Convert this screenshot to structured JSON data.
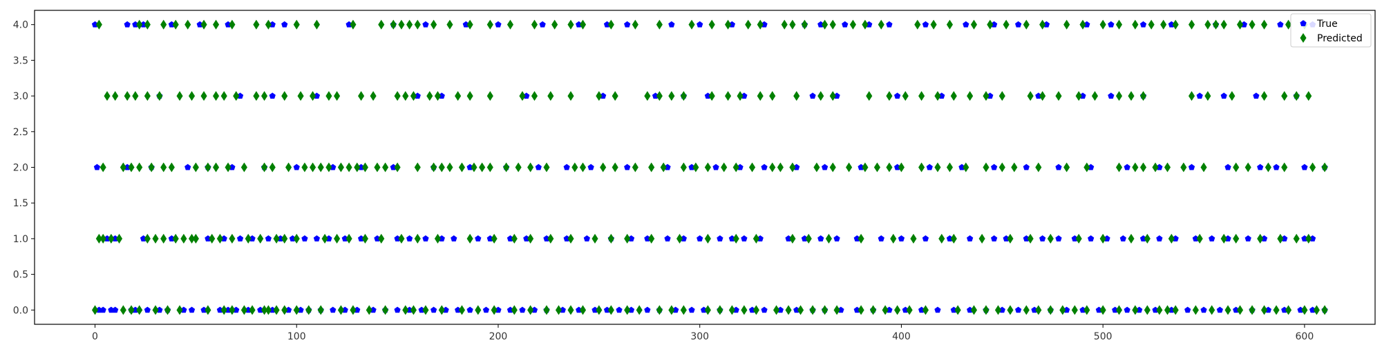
{
  "chart_data": {
    "type": "scatter",
    "xlim": [
      -30,
      635
    ],
    "ylim": [
      -0.2,
      4.2
    ],
    "x_ticks": [
      0,
      100,
      200,
      300,
      400,
      500,
      600
    ],
    "y_ticks": [
      0.0,
      0.5,
      1.0,
      1.5,
      2.0,
      2.5,
      3.0,
      3.5,
      4.0
    ],
    "grid": false,
    "legend_position": "top-right",
    "colors": {
      "true": "#0000ff",
      "predicted": "#008000"
    },
    "series": [
      {
        "name": "True",
        "marker": "pentagon",
        "points": {
          "0": [
            2,
            4,
            8,
            10,
            18,
            20,
            26,
            32,
            36,
            44,
            48,
            54,
            62,
            66,
            70,
            76,
            82,
            88,
            96,
            102,
            106,
            112,
            118,
            124,
            130,
            138,
            144,
            150,
            156,
            162,
            168,
            174,
            180,
            186,
            194,
            200,
            206,
            212,
            218,
            224,
            232,
            240,
            248,
            254,
            260,
            266,
            274,
            280,
            288,
            296,
            302,
            310,
            318,
            326,
            332,
            340,
            348,
            356,
            362,
            370,
            378,
            386,
            394,
            402,
            410,
            418,
            426,
            434,
            442,
            450,
            458,
            466,
            474,
            482,
            490,
            498,
            506,
            512,
            518,
            526,
            534,
            542,
            550,
            558,
            566,
            574,
            582,
            590,
            598,
            604,
            610
          ],
          "1": [
            6,
            10,
            24,
            38,
            56,
            64,
            72,
            78,
            86,
            92,
            98,
            104,
            110,
            116,
            124,
            132,
            140,
            150,
            156,
            164,
            172,
            178,
            190,
            196,
            206,
            214,
            224,
            234,
            244,
            256,
            266,
            274,
            284,
            292,
            300,
            310,
            316,
            322,
            330,
            344,
            352,
            360,
            368,
            378,
            390,
            400,
            412,
            424,
            434,
            446,
            452,
            462,
            470,
            478,
            486,
            494,
            502,
            510,
            520,
            528,
            536,
            546,
            554,
            562,
            572,
            580,
            590,
            600,
            604
          ],
          "2": [
            1,
            16,
            28,
            46,
            56,
            68,
            84,
            100,
            118,
            132,
            148,
            168,
            186,
            204,
            220,
            234,
            246,
            264,
            284,
            296,
            308,
            320,
            332,
            348,
            362,
            380,
            398,
            414,
            430,
            446,
            462,
            478,
            494,
            512,
            528,
            544,
            562,
            578,
            586,
            600,
            610
          ],
          "3": [
            32,
            72,
            88,
            110,
            160,
            172,
            214,
            252,
            278,
            292,
            304,
            322,
            356,
            368,
            398,
            420,
            444,
            468,
            490,
            504,
            520,
            548,
            560,
            576,
            596
          ],
          "4": [
            0,
            16,
            20,
            24,
            38,
            52,
            66,
            88,
            94,
            126,
            148,
            164,
            184,
            200,
            222,
            240,
            254,
            264,
            286,
            300,
            316,
            332,
            352,
            360,
            372,
            384,
            394,
            412,
            432,
            446,
            458,
            472,
            492,
            504,
            520,
            534,
            556,
            570,
            588,
            604
          ]
        }
      },
      {
        "name": "Predicted",
        "marker": "diamond",
        "points": {
          "0": [
            0,
            14,
            18,
            22,
            30,
            36,
            42,
            56,
            64,
            68,
            74,
            78,
            84,
            86,
            90,
            94,
            100,
            106,
            112,
            122,
            128,
            136,
            144,
            154,
            158,
            164,
            172,
            182,
            190,
            198,
            208,
            216,
            224,
            230,
            236,
            242,
            250,
            256,
            264,
            270,
            280,
            286,
            292,
            304,
            310,
            316,
            322,
            328,
            338,
            344,
            350,
            356,
            362,
            368,
            380,
            386,
            392,
            398,
            404,
            412,
            428,
            436,
            442,
            448,
            454,
            462,
            468,
            474,
            480,
            486,
            492,
            500,
            508,
            516,
            522,
            528,
            532,
            536,
            546,
            554,
            562,
            568,
            574,
            580,
            586,
            592,
            600,
            606,
            610
          ],
          "1": [
            2,
            4,
            8,
            12,
            26,
            30,
            34,
            40,
            44,
            48,
            50,
            58,
            62,
            68,
            76,
            82,
            90,
            94,
            100,
            114,
            120,
            126,
            134,
            142,
            152,
            160,
            170,
            186,
            198,
            208,
            216,
            226,
            236,
            248,
            256,
            264,
            276,
            290,
            304,
            318,
            328,
            346,
            354,
            364,
            380,
            396,
            406,
            420,
            426,
            440,
            454,
            464,
            474,
            488,
            500,
            514,
            522,
            534,
            548,
            560,
            566,
            578,
            588,
            596,
            602
          ],
          "2": [
            4,
            14,
            18,
            22,
            28,
            34,
            38,
            50,
            56,
            60,
            66,
            74,
            84,
            88,
            96,
            104,
            108,
            112,
            116,
            122,
            126,
            130,
            134,
            140,
            144,
            150,
            160,
            168,
            172,
            176,
            182,
            188,
            192,
            196,
            204,
            210,
            216,
            224,
            238,
            242,
            252,
            258,
            268,
            276,
            282,
            292,
            298,
            304,
            312,
            318,
            326,
            336,
            340,
            346,
            358,
            366,
            374,
            382,
            388,
            394,
            400,
            410,
            418,
            424,
            432,
            442,
            450,
            456,
            468,
            482,
            492,
            508,
            516,
            520,
            526,
            532,
            540,
            550,
            566,
            572,
            582,
            590,
            604,
            610
          ],
          "3": [
            6,
            10,
            16,
            20,
            26,
            32,
            42,
            48,
            54,
            60,
            64,
            70,
            80,
            84,
            94,
            102,
            108,
            116,
            120,
            132,
            138,
            150,
            154,
            158,
            166,
            170,
            180,
            186,
            196,
            212,
            218,
            226,
            236,
            250,
            258,
            274,
            280,
            286,
            292,
            306,
            314,
            320,
            330,
            336,
            348,
            360,
            366,
            384,
            394,
            402,
            410,
            418,
            426,
            434,
            442,
            450,
            464,
            470,
            478,
            488,
            496,
            508,
            514,
            520,
            544,
            552,
            564,
            580,
            590,
            596,
            602
          ],
          "4": [
            2,
            22,
            26,
            34,
            40,
            46,
            54,
            60,
            68,
            80,
            86,
            100,
            110,
            128,
            142,
            148,
            152,
            156,
            160,
            168,
            176,
            186,
            196,
            206,
            218,
            228,
            236,
            242,
            256,
            268,
            280,
            296,
            306,
            314,
            324,
            330,
            342,
            346,
            352,
            362,
            366,
            376,
            382,
            390,
            408,
            416,
            424,
            436,
            444,
            452,
            462,
            470,
            482,
            490,
            500,
            508,
            516,
            524,
            530,
            536,
            544,
            552,
            556,
            560,
            568,
            574,
            580,
            592,
            600
          ]
        }
      }
    ]
  }
}
